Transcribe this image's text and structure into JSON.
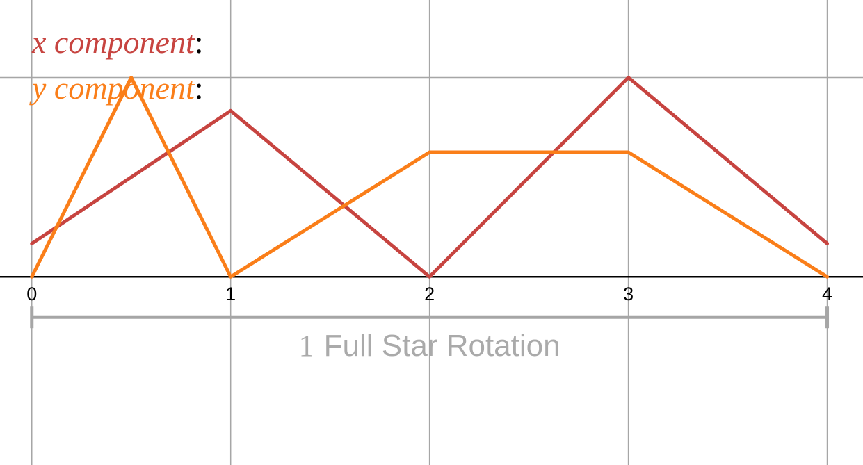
{
  "chart_data": {
    "type": "line",
    "title": "",
    "xlabel": "",
    "ylabel": "",
    "xlim": [
      -0.16,
      4.18
    ],
    "ylim": [
      -0.68,
      1.0
    ],
    "x_ticks": [
      "0",
      "1",
      "2",
      "3",
      "4"
    ],
    "grid": true,
    "legend": "top-left",
    "series": [
      {
        "name": "x component",
        "color": "#c74440",
        "points": [
          [
            0,
            0.12
          ],
          [
            1,
            0.6
          ],
          [
            2,
            0
          ],
          [
            3,
            0.72
          ],
          [
            4,
            0.12
          ]
        ]
      },
      {
        "name": "y component",
        "color": "#fa7e19",
        "points": [
          [
            0,
            0
          ],
          [
            0.5,
            0.72
          ],
          [
            1,
            0
          ],
          [
            2,
            0.45
          ],
          [
            3,
            0.45
          ],
          [
            4,
            0
          ]
        ]
      }
    ],
    "annotation": {
      "number": "1",
      "text": "Full Star Rotation",
      "from": 0,
      "to": 4
    }
  },
  "legend": {
    "x_label": "x component",
    "y_label": "y component",
    "colon": ":"
  }
}
